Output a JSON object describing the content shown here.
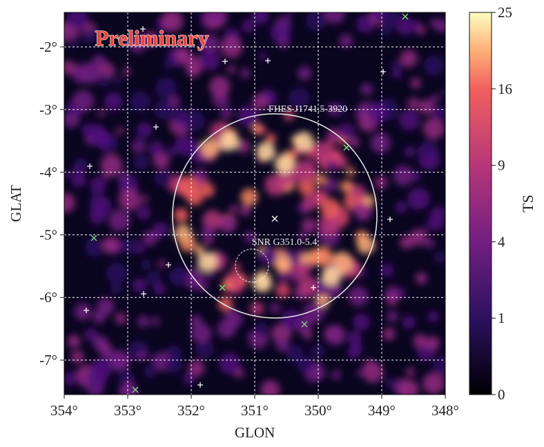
{
  "chart_data": {
    "type": "heatmap",
    "annotations": [
      "Preliminary",
      "FHES J1741.5-3920",
      "SNR G351.0-5.4"
    ],
    "xlabel": "GLON",
    "ylabel": "GLAT",
    "xlim": [
      354,
      348
    ],
    "xticks": [
      {
        "value": 354,
        "label": "354°"
      },
      {
        "value": 353,
        "label": "353°"
      },
      {
        "value": 352,
        "label": "352°"
      },
      {
        "value": 351,
        "label": "351°"
      },
      {
        "value": 350,
        "label": "350°"
      },
      {
        "value": 349,
        "label": "349°"
      },
      {
        "value": 348,
        "label": "348°"
      }
    ],
    "ylim": [
      -7.55,
      -1.45
    ],
    "yticks": [
      {
        "value": -2,
        "label": "-2°"
      },
      {
        "value": -3,
        "label": "-3°"
      },
      {
        "value": -4,
        "label": "-4°"
      },
      {
        "value": -5,
        "label": "-5°"
      },
      {
        "value": -6,
        "label": "-6°"
      },
      {
        "value": -7,
        "label": "-7°"
      }
    ],
    "grid": true,
    "colorbar": {
      "label": "TS",
      "lim": [
        0,
        25
      ],
      "ticks": [
        0,
        1,
        4,
        9,
        16,
        25
      ],
      "scale": "sqrt"
    }
  }
}
